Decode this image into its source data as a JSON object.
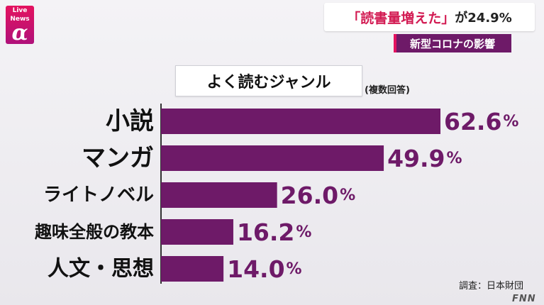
{
  "logo": {
    "line1": "Live",
    "line2": "News",
    "alpha": "α"
  },
  "headline": {
    "quote_text": "「読書量増えた」",
    "rest_text": "が24.9%"
  },
  "subbanner": {
    "text": "新型コロナの影響"
  },
  "chart_title": "よく読むジャンル",
  "chart_note": "(複数回答)",
  "source": "調査：日本財団",
  "watermark": "FNN",
  "colors": {
    "bar": "#6e1a68",
    "accent": "#e4125f",
    "axis": "#333333",
    "text": "#111111"
  },
  "chart_data": {
    "type": "bar",
    "orientation": "horizontal",
    "categories": [
      "小説",
      "マンガ",
      "ライトノベル",
      "趣味全般の教本",
      "人文・思想"
    ],
    "values": [
      62.6,
      49.9,
      26.0,
      16.2,
      14.0
    ],
    "value_labels": [
      "62.6",
      "49.9",
      "26.0",
      "16.2",
      "14.0"
    ],
    "unit": "%",
    "title": "よく読むジャンル",
    "xlabel": "",
    "ylabel": "",
    "xlim": [
      0,
      62.6
    ],
    "grid": false,
    "legend": "none"
  }
}
